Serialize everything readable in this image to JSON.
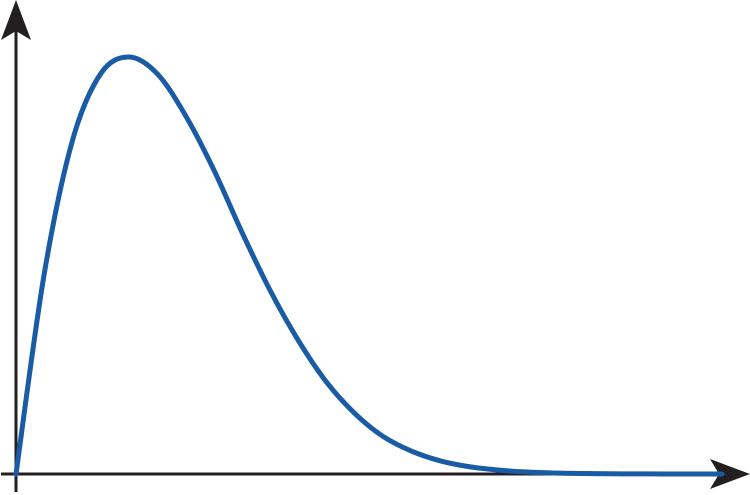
{
  "chart_data": {
    "type": "line",
    "title": "",
    "xlabel": "",
    "ylabel": "",
    "grid": false,
    "legend": "none",
    "xlim": [
      0,
      1
    ],
    "ylim": [
      0,
      1
    ],
    "series": [
      {
        "color": "#1a5ba6",
        "x": [
          0,
          0.04,
          0.08,
          0.12,
          0.16,
          0.2,
          0.24,
          0.28,
          0.32,
          0.36,
          0.4,
          0.44,
          0.48,
          0.52,
          0.56,
          0.6,
          0.64,
          0.68,
          0.72,
          0.76,
          0.8,
          0.84,
          0.88,
          0.92,
          0.96,
          1.0
        ],
        "y": [
          0,
          0.48,
          0.8,
          0.96,
          1.0,
          0.96,
          0.86,
          0.73,
          0.58,
          0.44,
          0.32,
          0.22,
          0.145,
          0.09,
          0.055,
          0.032,
          0.018,
          0.01,
          0.005,
          0.0025,
          0.0012,
          0.0006,
          0.0003,
          0.00012,
          5e-05,
          2e-05
        ]
      }
    ]
  }
}
